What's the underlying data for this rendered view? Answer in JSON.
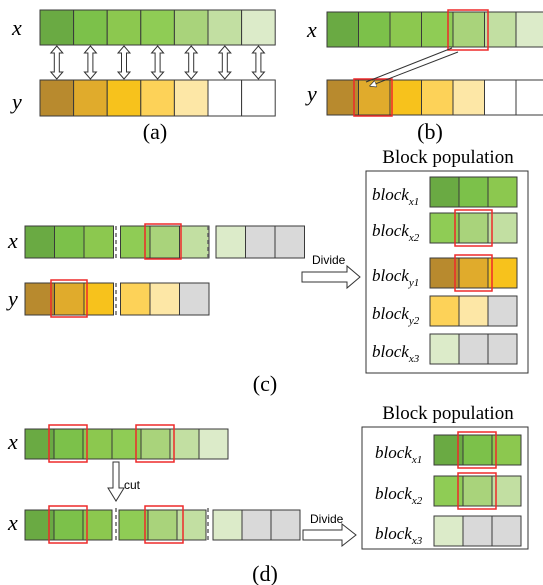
{
  "colors": {
    "x": [
      "#6aaa43",
      "#7cc14a",
      "#8cc84f",
      "#8fcc55",
      "#a9d37b",
      "#c2dfa2",
      "#dcebc9"
    ],
    "y": [
      "#b88a2e",
      "#e0ab2c",
      "#f7c21c",
      "#fdd258",
      "#fde7a6",
      "#ffffff",
      "#ffffff"
    ],
    "grey": "#d9d9d9",
    "highlight": "#ee2a2a",
    "border": "#3a3a3a"
  },
  "labels": {
    "x": "x",
    "y": "y",
    "caption_a": "(a)",
    "caption_b": "(b)",
    "caption_c": "(c)",
    "caption_d": "(d)",
    "block_population": "Block population",
    "divide": "Divide",
    "cut": "cut",
    "block_word": "block",
    "sub_x1": "x1",
    "sub_x2": "x2",
    "sub_x3": "x3",
    "sub_y1": "y1",
    "sub_y2": "y2"
  }
}
